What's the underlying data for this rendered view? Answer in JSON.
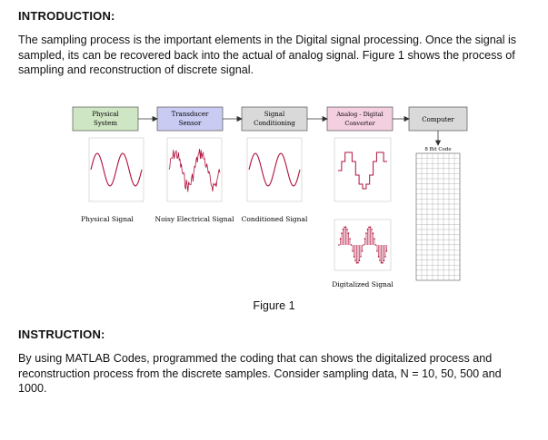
{
  "intro": {
    "heading": "INTRODUCTION:",
    "paragraph": "The sampling process is the important elements in the Digital signal processing. Once the signal is sampled, its can be recovered back into the actual of analog signal. Figure 1 shows the process of sampling and reconstruction of discrete signal."
  },
  "figure": {
    "blocks": {
      "physical": [
        "Physical",
        "System"
      ],
      "transducer": [
        "Transducer",
        "Sensor"
      ],
      "conditioning": [
        "Signal",
        "Conditioning"
      ],
      "adc": [
        "Analog - Digital",
        "Converter"
      ],
      "computer": "Computer"
    },
    "labels": {
      "physical_signal": "Physical Signal",
      "noisy_signal": "Noisy Electrical Signal",
      "conditioned_signal": "Conditioned Signal",
      "digitalized_signal": "Digitalized Signal",
      "bit_code": "8 Bit Code"
    },
    "caption": "Figure 1",
    "colors": {
      "block_green": "#cfe6c4",
      "block_blue": "#c9cbf2",
      "block_gray": "#d9d9d9",
      "block_pink": "#f4cfe0",
      "signal_red": "#b0123c"
    }
  },
  "instruction": {
    "heading": "INSTRUCTION:",
    "paragraph": "By using MATLAB Codes, programmed the coding that can shows the digitalized process and reconstruction process from the discrete samples. Consider sampling data, N = 10, 50, 500 and 1000."
  }
}
